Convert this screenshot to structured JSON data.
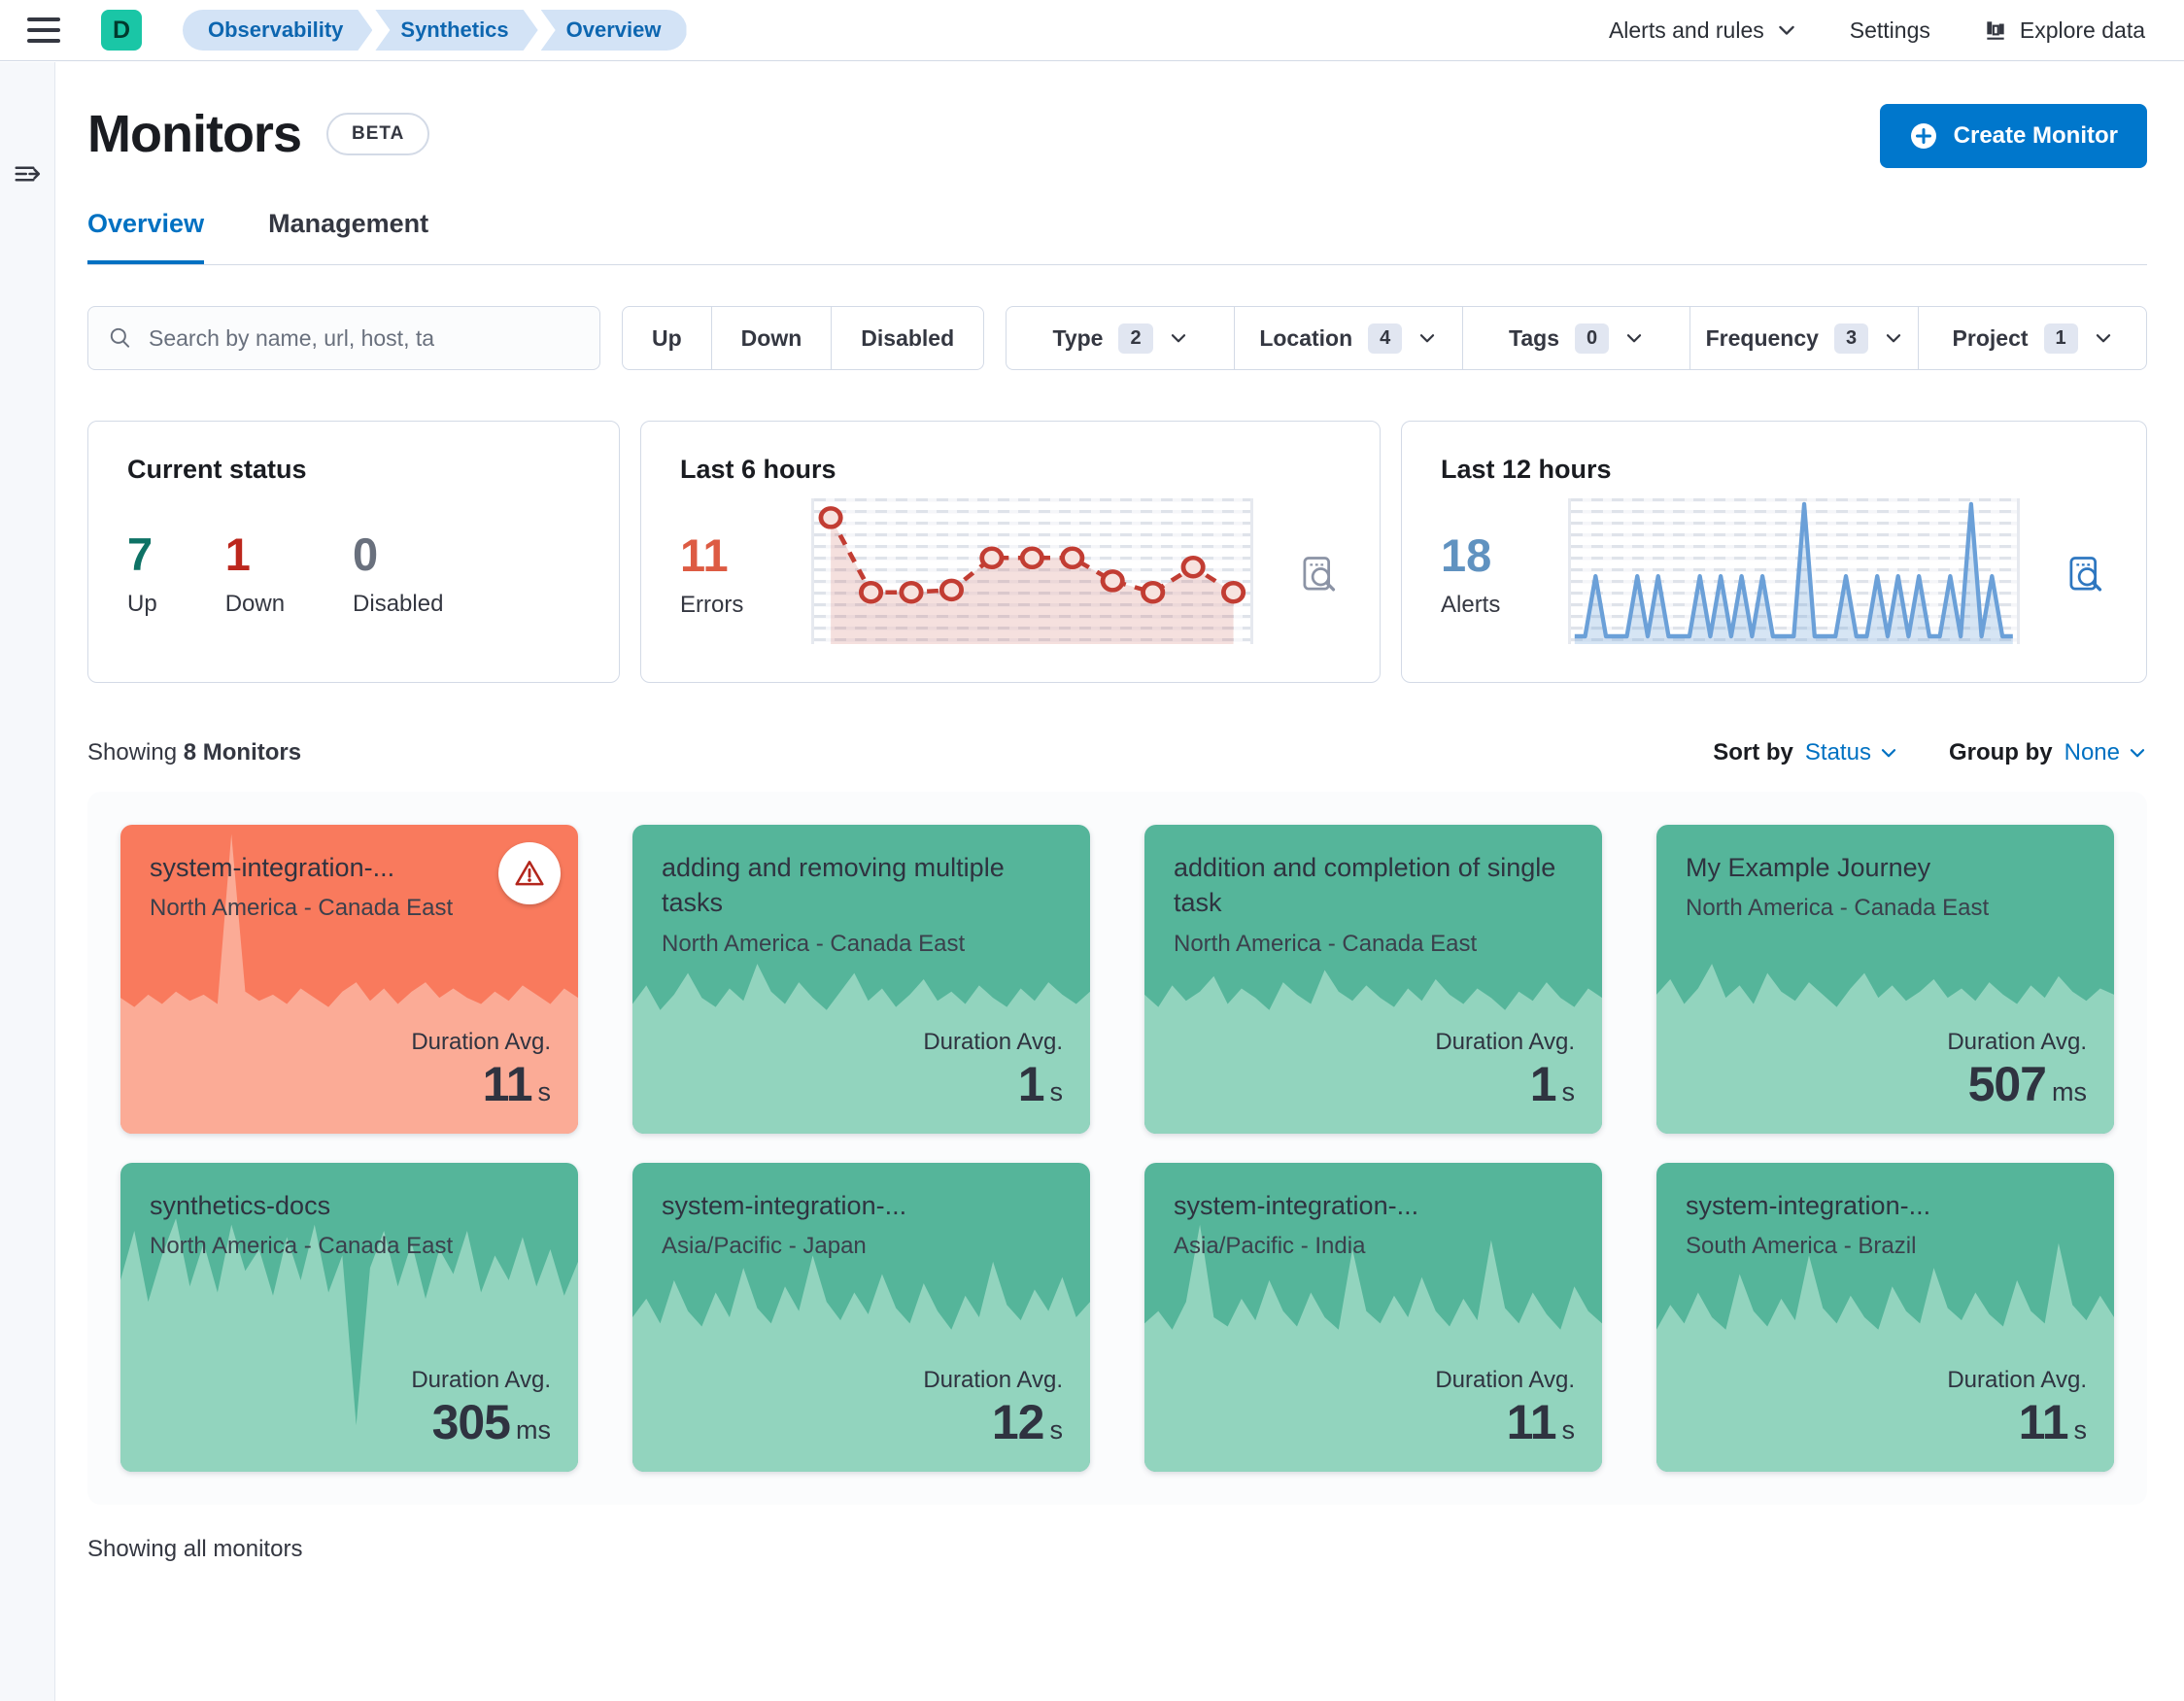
{
  "header": {
    "avatar_letter": "D",
    "breadcrumbs": [
      "Observability",
      "Synthetics",
      "Overview"
    ],
    "nav": [
      {
        "label": "Alerts and rules",
        "has_chevron": true
      },
      {
        "label": "Settings"
      },
      {
        "label": "Explore data",
        "icon": "bar-chart-icon"
      }
    ]
  },
  "page": {
    "title": "Monitors",
    "beta_badge": "BETA",
    "create_button": "Create Monitor",
    "tabs": [
      {
        "label": "Overview",
        "active": true
      },
      {
        "label": "Management",
        "active": false
      }
    ]
  },
  "filters": {
    "search_placeholder": "Search by name, url, host, ta",
    "status_buttons": [
      "Up",
      "Down",
      "Disabled"
    ],
    "dropdowns": [
      {
        "label": "Type",
        "count": "2"
      },
      {
        "label": "Location",
        "count": "4"
      },
      {
        "label": "Tags",
        "count": "0"
      },
      {
        "label": "Frequency",
        "count": "3"
      },
      {
        "label": "Project",
        "count": "1"
      }
    ]
  },
  "summary": {
    "current_status": {
      "title": "Current status",
      "stats": [
        {
          "value": "7",
          "label": "Up",
          "color": "#0e7265"
        },
        {
          "value": "1",
          "label": "Down",
          "color": "#bc271d"
        },
        {
          "value": "0",
          "label": "Disabled",
          "color": "#69707d"
        }
      ]
    },
    "last6": {
      "title": "Last 6 hours",
      "value": "11",
      "label": "Errors",
      "color": "#dd5b43",
      "line_color": "#c23d33",
      "series": [
        10.5,
        4,
        4,
        4.2,
        7,
        7,
        7,
        5,
        4,
        6.2,
        4
      ],
      "max": 11
    },
    "last12": {
      "title": "Last 12 hours",
      "value": "18",
      "label": "Alerts",
      "color": "#6092c0",
      "line_color": "#6ba0d8",
      "series": [
        0,
        0,
        1,
        0,
        0,
        0,
        1,
        0,
        1,
        0,
        0,
        0,
        1,
        0,
        1,
        0,
        1,
        0,
        1,
        0,
        0,
        0,
        2.2,
        0,
        0,
        0,
        1,
        0,
        0,
        1,
        0,
        1,
        0,
        1,
        0,
        0,
        1,
        0,
        2.2,
        0,
        1,
        0,
        0
      ],
      "max": 2.2
    }
  },
  "listing": {
    "showing_prefix": "Showing",
    "showing_bold": "8 Monitors",
    "sort_label": "Sort by",
    "sort_value": "Status",
    "group_label": "Group by",
    "group_value": "None",
    "footer": "Showing all monitors"
  },
  "monitor_colors": {
    "up_bg": "#55b59a",
    "up_fill": "#92d4be",
    "down_bg": "#f97a5d",
    "down_fill": "#fbab96"
  },
  "monitors": [
    {
      "name": "system-integration-...",
      "location": "North America - Canada East",
      "duration_label": "Duration Avg.",
      "value": "11",
      "unit": "s",
      "status": "down",
      "spark": [
        0.44,
        0.41,
        0.45,
        0.42,
        0.46,
        0.43,
        0.45,
        0.42,
        0.97,
        0.46,
        0.43,
        0.45,
        0.42,
        0.47,
        0.44,
        0.41,
        0.46,
        0.49,
        0.43,
        0.47,
        0.42,
        0.46,
        0.49,
        0.44,
        0.47,
        0.44,
        0.42,
        0.46,
        0.43,
        0.48,
        0.45,
        0.42,
        0.47,
        0.44
      ]
    },
    {
      "name": "adding and removing multiple tasks",
      "location": "North America - Canada East",
      "duration_label": "Duration Avg.",
      "value": "1",
      "unit": "s",
      "status": "up",
      "spark": [
        0.42,
        0.48,
        0.4,
        0.45,
        0.52,
        0.44,
        0.41,
        0.47,
        0.43,
        0.55,
        0.46,
        0.42,
        0.49,
        0.44,
        0.4,
        0.46,
        0.52,
        0.43,
        0.47,
        0.41,
        0.45,
        0.5,
        0.43,
        0.46,
        0.42,
        0.48,
        0.44,
        0.41,
        0.47,
        0.43,
        0.49,
        0.45,
        0.42,
        0.46
      ]
    },
    {
      "name": "addition and completion of single task",
      "location": "North America - Canada East",
      "duration_label": "Duration Avg.",
      "value": "1",
      "unit": "s",
      "status": "up",
      "spark": [
        0.45,
        0.41,
        0.48,
        0.43,
        0.46,
        0.51,
        0.42,
        0.47,
        0.44,
        0.4,
        0.49,
        0.45,
        0.42,
        0.53,
        0.46,
        0.43,
        0.48,
        0.44,
        0.41,
        0.47,
        0.43,
        0.5,
        0.45,
        0.42,
        0.47,
        0.44,
        0.4,
        0.46,
        0.43,
        0.49,
        0.44,
        0.41,
        0.47,
        0.44
      ]
    },
    {
      "name": "My Example Journey",
      "location": "North America - Canada East",
      "duration_label": "Duration Avg.",
      "value": "507",
      "unit": "ms",
      "status": "up",
      "spark": [
        0.45,
        0.5,
        0.42,
        0.47,
        0.55,
        0.44,
        0.48,
        0.42,
        0.52,
        0.46,
        0.43,
        0.49,
        0.45,
        0.41,
        0.47,
        0.52,
        0.44,
        0.48,
        0.43,
        0.46,
        0.5,
        0.44,
        0.47,
        0.43,
        0.49,
        0.45,
        0.42,
        0.48,
        0.44,
        0.51,
        0.46,
        0.43,
        0.47,
        0.45
      ]
    },
    {
      "name": "synthetics-docs",
      "location": "North America - Canada East",
      "duration_label": "Duration Avg.",
      "value": "305",
      "unit": "ms",
      "status": "up",
      "spark": [
        0.62,
        0.78,
        0.55,
        0.7,
        0.82,
        0.6,
        0.74,
        0.58,
        0.8,
        0.65,
        0.72,
        0.57,
        0.76,
        0.62,
        0.8,
        0.58,
        0.7,
        0.15,
        0.66,
        0.78,
        0.6,
        0.74,
        0.56,
        0.72,
        0.64,
        0.78,
        0.58,
        0.7,
        0.62,
        0.76,
        0.6,
        0.72,
        0.57,
        0.68
      ]
    },
    {
      "name": "system-integration-...",
      "location": "Asia/Pacific - Japan",
      "duration_label": "Duration Avg.",
      "value": "12",
      "unit": "s",
      "status": "up",
      "spark": [
        0.5,
        0.56,
        0.48,
        0.62,
        0.52,
        0.47,
        0.58,
        0.5,
        0.66,
        0.53,
        0.48,
        0.6,
        0.52,
        0.7,
        0.55,
        0.49,
        0.58,
        0.51,
        0.64,
        0.53,
        0.48,
        0.61,
        0.52,
        0.46,
        0.57,
        0.5,
        0.68,
        0.54,
        0.49,
        0.59,
        0.52,
        0.63,
        0.5,
        0.55
      ]
    },
    {
      "name": "system-integration-...",
      "location": "Asia/Pacific - India",
      "duration_label": "Duration Avg.",
      "value": "11",
      "unit": "s",
      "status": "up",
      "spark": [
        0.48,
        0.52,
        0.46,
        0.55,
        0.8,
        0.5,
        0.47,
        0.56,
        0.49,
        0.62,
        0.52,
        0.47,
        0.58,
        0.5,
        0.46,
        0.72,
        0.52,
        0.48,
        0.57,
        0.5,
        0.63,
        0.52,
        0.47,
        0.56,
        0.49,
        0.75,
        0.53,
        0.48,
        0.58,
        0.51,
        0.46,
        0.6,
        0.52,
        0.48
      ]
    },
    {
      "name": "system-integration-...",
      "location": "South America - Brazil",
      "duration_label": "Duration Avg.",
      "value": "11",
      "unit": "s",
      "status": "up",
      "spark": [
        0.46,
        0.54,
        0.48,
        0.58,
        0.5,
        0.46,
        0.64,
        0.52,
        0.47,
        0.56,
        0.49,
        0.7,
        0.53,
        0.48,
        0.57,
        0.5,
        0.46,
        0.6,
        0.52,
        0.48,
        0.66,
        0.53,
        0.49,
        0.58,
        0.51,
        0.47,
        0.62,
        0.52,
        0.48,
        0.74,
        0.54,
        0.49,
        0.57,
        0.5
      ]
    }
  ]
}
